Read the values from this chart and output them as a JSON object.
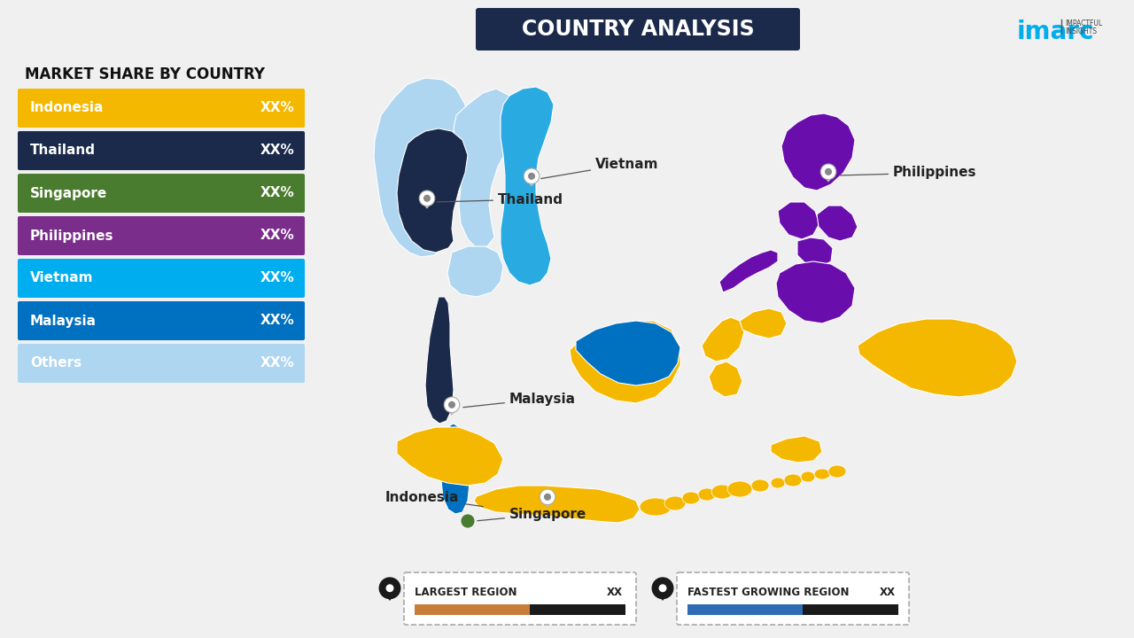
{
  "title": "COUNTRY ANALYSIS",
  "subtitle": "MARKET SHARE BY COUNTRY",
  "background_color": "#f0f0f0",
  "legend_items": [
    {
      "label": "Indonesia",
      "value": "XX%",
      "color": "#F5B800"
    },
    {
      "label": "Thailand",
      "value": "XX%",
      "color": "#1B2A4A"
    },
    {
      "label": "Singapore",
      "value": "XX%",
      "color": "#4A7C2F"
    },
    {
      "label": "Philippines",
      "value": "XX%",
      "color": "#7B2D8B"
    },
    {
      "label": "Vietnam",
      "value": "XX%",
      "color": "#00AEEF"
    },
    {
      "label": "Malaysia",
      "value": "XX%",
      "color": "#0070C0"
    },
    {
      "label": "Others",
      "value": "XX%",
      "color": "#AED6F1"
    }
  ],
  "map_colors": {
    "Indonesia": "#F5B800",
    "Thailand": "#1B2A4A",
    "Singapore": "#4A7C2F",
    "Philippines": "#6A0DAD",
    "Vietnam": "#29ABE2",
    "Malaysia": "#0070C0",
    "Others": "#AED6F1"
  },
  "title_box_color": "#1B2A4A",
  "imarc_color": "#00AEEF",
  "largest_region_color1": "#C87E3A",
  "largest_region_color2": "#1a1a1a",
  "fastest_region_color1": "#2E6DB4",
  "fastest_region_color2": "#1a1a1a"
}
